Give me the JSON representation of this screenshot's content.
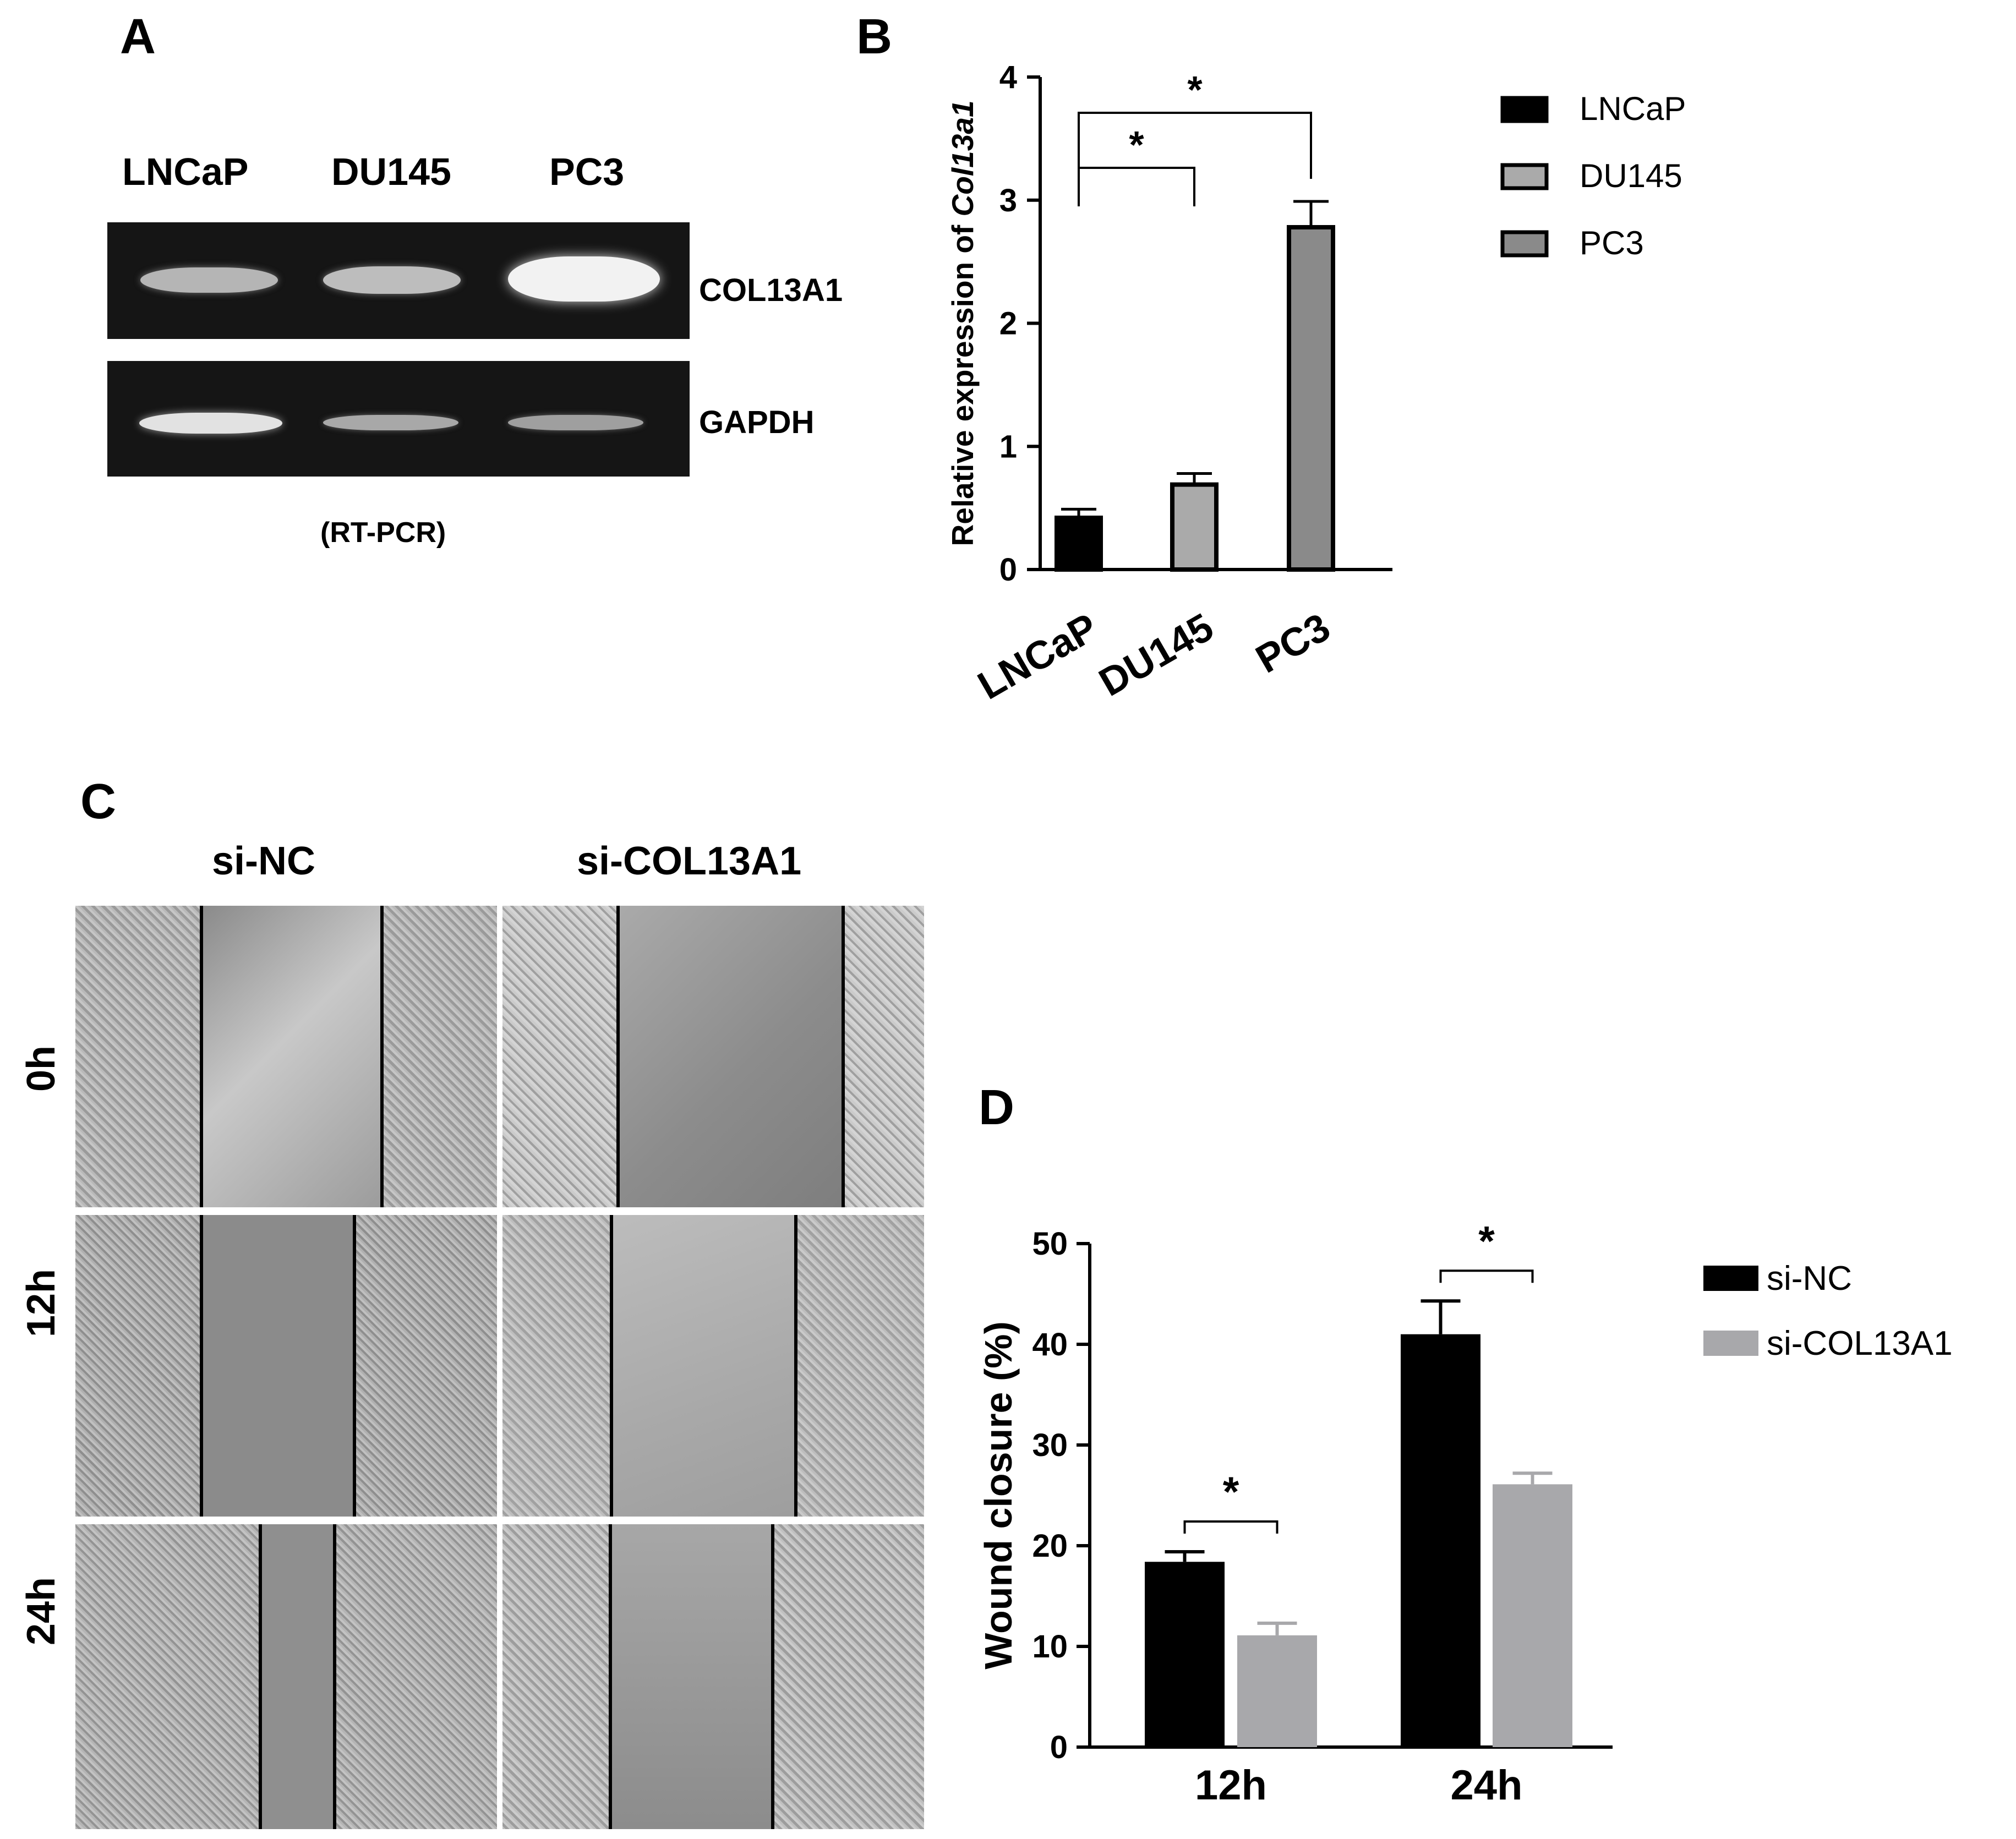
{
  "panels": {
    "a": {
      "letter": "A",
      "lanes": [
        "LNCaP",
        "DU145",
        "PC3"
      ],
      "genes": [
        "COL13A1",
        "GAPDH"
      ],
      "caption": "(RT-PCR)"
    },
    "b": {
      "letter": "B"
    },
    "c": {
      "letter": "C",
      "columns": [
        "si-NC",
        "si-COL13A1"
      ],
      "rows": [
        "0h",
        "12h",
        "24h"
      ]
    },
    "d": {
      "letter": "D"
    }
  },
  "chart_data": [
    {
      "type": "bar",
      "panel": "B",
      "categories": [
        "LNCaP",
        "DU145",
        "PC3"
      ],
      "values": [
        0.42,
        0.69,
        2.78
      ],
      "errors": [
        0.07,
        0.09,
        0.21
      ],
      "colors": [
        "#000000",
        "#aaaaaa",
        "#8a8a8a"
      ],
      "title": "",
      "xlabel": "",
      "ylabel": "Relative expression of ",
      "ylabel_italic": "Col13a1",
      "ylim": [
        0,
        4
      ],
      "yticks": [
        "0",
        "1",
        "2",
        "3",
        "4"
      ],
      "grid": false,
      "legend": {
        "position": "top-right",
        "entries": [
          "LNCaP",
          "DU145",
          "PC3"
        ]
      },
      "annotations": [
        {
          "from": "LNCaP",
          "to": "DU145",
          "text": "*"
        },
        {
          "from": "LNCaP",
          "to": "PC3",
          "text": "*"
        }
      ]
    },
    {
      "type": "bar",
      "panel": "D",
      "categories": [
        "12h",
        "24h"
      ],
      "series": [
        {
          "name": "si-NC",
          "values": [
            18.4,
            41.0
          ],
          "errors": [
            1.0,
            3.3
          ],
          "color": "#000000"
        },
        {
          "name": "si-COL13A1",
          "values": [
            11.1,
            26.1
          ],
          "errors": [
            1.2,
            1.1
          ],
          "color": "#a8a8ab"
        }
      ],
      "title": "",
      "xlabel": "",
      "ylabel": "Wound closure (%)",
      "ylim": [
        0,
        50
      ],
      "yticks": [
        "0",
        "10",
        "20",
        "30",
        "40",
        "50"
      ],
      "grid": false,
      "legend": {
        "position": "top-right"
      },
      "annotations": [
        {
          "category": "12h",
          "text": "*"
        },
        {
          "category": "24h",
          "text": "*"
        }
      ]
    }
  ]
}
